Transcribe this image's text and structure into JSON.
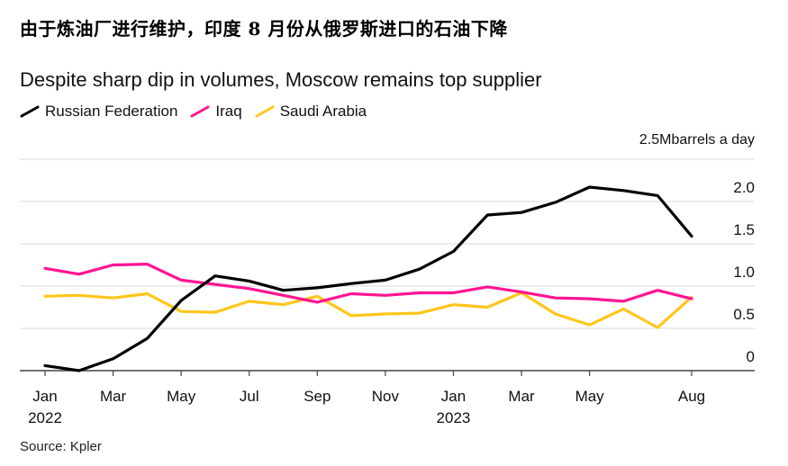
{
  "headline": "由于炼油厂进行维护，印度 8 月份从俄罗斯进口的石油下降",
  "source": "Source: Kpler",
  "chart_data": {
    "type": "line",
    "title": "Despite sharp dip in volumes, Moscow remains top supplier",
    "ylabel": "Mbarrels a day",
    "ylim": [
      0,
      2.5
    ],
    "yticks": [
      0,
      0.5,
      1.0,
      1.5,
      2.0,
      2.5
    ],
    "ytick_labels": [
      "0",
      "0.5",
      "1.0",
      "1.5",
      "2.0",
      "2.5"
    ],
    "x": [
      "2022-01",
      "2022-02",
      "2022-03",
      "2022-04",
      "2022-05",
      "2022-06",
      "2022-07",
      "2022-08",
      "2022-09",
      "2022-10",
      "2022-11",
      "2022-12",
      "2023-01",
      "2023-02",
      "2023-03",
      "2023-04",
      "2023-05",
      "2023-06",
      "2023-07",
      "2023-08"
    ],
    "xticks": [
      {
        "index": 0,
        "label": "Jan",
        "year": "2022"
      },
      {
        "index": 2,
        "label": "Mar",
        "year": ""
      },
      {
        "index": 4,
        "label": "May",
        "year": ""
      },
      {
        "index": 6,
        "label": "Jul",
        "year": ""
      },
      {
        "index": 8,
        "label": "Sep",
        "year": ""
      },
      {
        "index": 10,
        "label": "Nov",
        "year": ""
      },
      {
        "index": 12,
        "label": "Jan",
        "year": "2023"
      },
      {
        "index": 14,
        "label": "Mar",
        "year": ""
      },
      {
        "index": 16,
        "label": "May",
        "year": ""
      },
      {
        "index": 19,
        "label": "Aug",
        "year": ""
      }
    ],
    "grid": true,
    "legend_position": "top-left",
    "series": [
      {
        "name": "Russian Federation",
        "color": "#000000",
        "values": [
          0.06,
          0.0,
          0.14,
          0.38,
          0.83,
          1.12,
          1.06,
          0.95,
          0.98,
          1.03,
          1.07,
          1.2,
          1.41,
          1.84,
          1.87,
          1.99,
          2.17,
          2.13,
          2.07,
          1.59
        ]
      },
      {
        "name": "Iraq",
        "color": "#ff1493",
        "values": [
          1.21,
          1.14,
          1.25,
          1.26,
          1.07,
          1.02,
          0.97,
          0.89,
          0.81,
          0.91,
          0.89,
          0.92,
          0.92,
          0.99,
          0.93,
          0.86,
          0.85,
          0.82,
          0.95,
          0.85
        ]
      },
      {
        "name": "Saudi Arabia",
        "color": "#ffc61a",
        "values": [
          0.88,
          0.89,
          0.86,
          0.91,
          0.7,
          0.69,
          0.82,
          0.78,
          0.88,
          0.65,
          0.67,
          0.68,
          0.78,
          0.75,
          0.92,
          0.67,
          0.54,
          0.73,
          0.51,
          0.87
        ]
      }
    ]
  }
}
